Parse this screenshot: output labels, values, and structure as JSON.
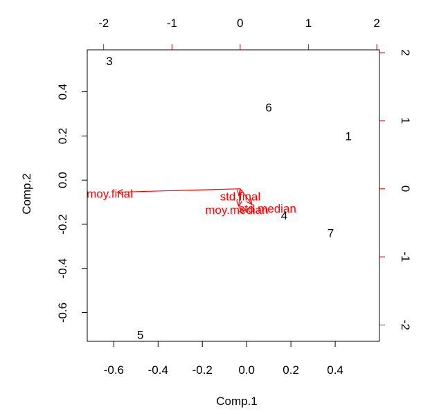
{
  "chart_data": {
    "type": "scatter",
    "subtype": "biplot",
    "title": "",
    "xlabel": "Comp.1",
    "ylabel": "Comp.2",
    "xlim": [
      -0.72,
      0.6
    ],
    "ylim": [
      -0.73,
      0.59
    ],
    "xticks": [
      -0.6,
      -0.4,
      -0.2,
      0.0,
      0.2,
      0.4
    ],
    "xtick_labels": [
      "-0.6",
      "-0.4",
      "-0.2",
      "0.0",
      "0.2",
      "0.4"
    ],
    "yticks": [
      -0.6,
      -0.4,
      -0.2,
      0.0,
      0.2,
      0.4
    ],
    "ytick_labels": [
      "-0.6",
      "-0.4",
      "-0.2",
      "0.0",
      "0.2",
      "0.4"
    ],
    "top_axis": {
      "ticks": [
        -2,
        -1,
        0,
        1,
        2
      ],
      "tick_labels": [
        "-2",
        "-1",
        "0",
        "1",
        "2"
      ],
      "range": [
        -2.24,
        2.04
      ],
      "color": "#ff0000"
    },
    "right_axis": {
      "ticks": [
        -2,
        -1,
        0,
        1,
        2
      ],
      "tick_labels": [
        "-2",
        "-1",
        "0",
        "1",
        "2"
      ],
      "range": [
        -2.24,
        2.04
      ],
      "color": "#ff0000"
    },
    "points": [
      {
        "label": "1",
        "x": 0.46,
        "y": 0.2
      },
      {
        "label": "3",
        "x": -0.62,
        "y": 0.54
      },
      {
        "label": "4",
        "x": 0.17,
        "y": -0.16
      },
      {
        "label": "5",
        "x": -0.48,
        "y": -0.7
      },
      {
        "label": "6",
        "x": 0.1,
        "y": 0.33
      },
      {
        "label": "7",
        "x": 0.38,
        "y": -0.24
      }
    ],
    "vectors": [
      {
        "name": "moy.final",
        "x": -1.8,
        "y": -0.05,
        "label_x": -1.91,
        "label_y": -0.07
      },
      {
        "name": "std.final",
        "x": -0.02,
        "y": -0.1,
        "label_x": 0.0,
        "label_y": -0.11
      },
      {
        "name": "moy.median",
        "x": -0.02,
        "y": -0.26,
        "label_x": -0.05,
        "label_y": -0.31
      },
      {
        "name": "std.median",
        "x": 0.17,
        "y": -0.23,
        "label_x": 0.4,
        "label_y": -0.29
      }
    ],
    "point_color": "#000000",
    "vector_color": "#ff0000",
    "grid": false,
    "legend": "none"
  }
}
